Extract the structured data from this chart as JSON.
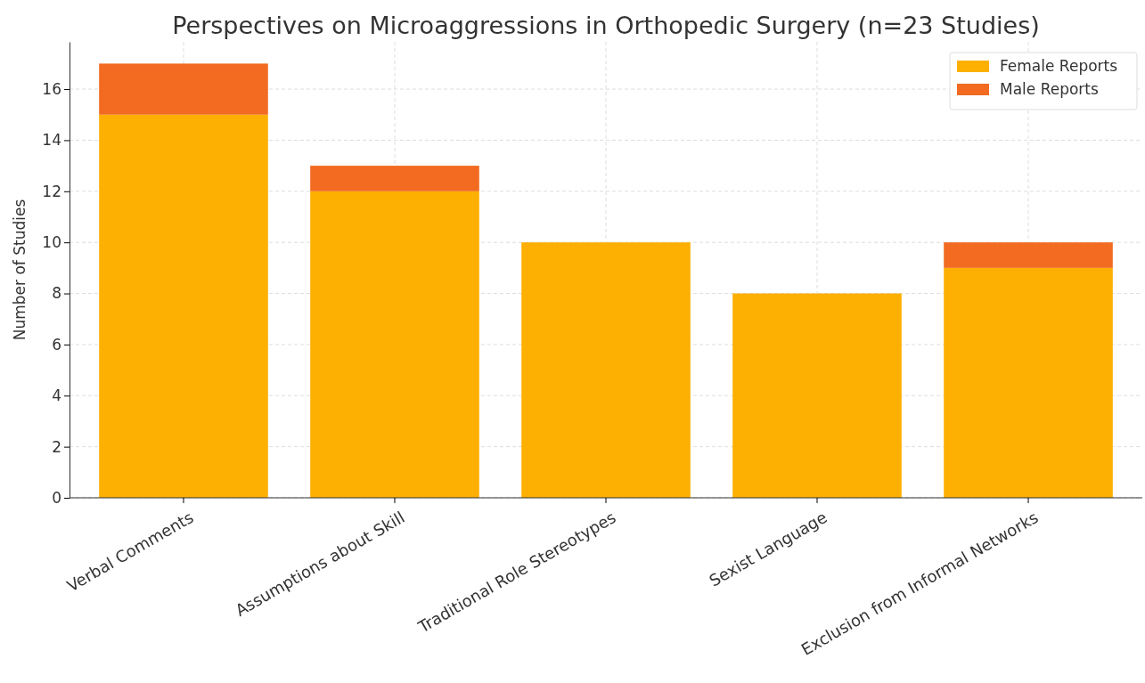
{
  "chart_data": {
    "type": "bar",
    "title": "Perspectives on Microaggressions in Orthopedic Surgery (n=23 Studies)",
    "ylabel": "Number of Studies",
    "categories": [
      "Verbal Comments",
      "Assumptions about Skill",
      "Traditional Role Stereotypes",
      "Sexist Language",
      "Exclusion from Informal Networks"
    ],
    "stacked": true,
    "series": [
      {
        "name": "Female Reports",
        "color": "#fdb002",
        "values": [
          15,
          12,
          10,
          8,
          9
        ]
      },
      {
        "name": "Male Reports",
        "color": "#f26b21",
        "values": [
          2,
          1,
          0,
          0,
          1
        ]
      }
    ],
    "ylim": [
      0,
      17.85
    ],
    "yticks": [
      0,
      2,
      4,
      6,
      8,
      10,
      12,
      14,
      16
    ],
    "grid": true,
    "legend": "top right"
  }
}
